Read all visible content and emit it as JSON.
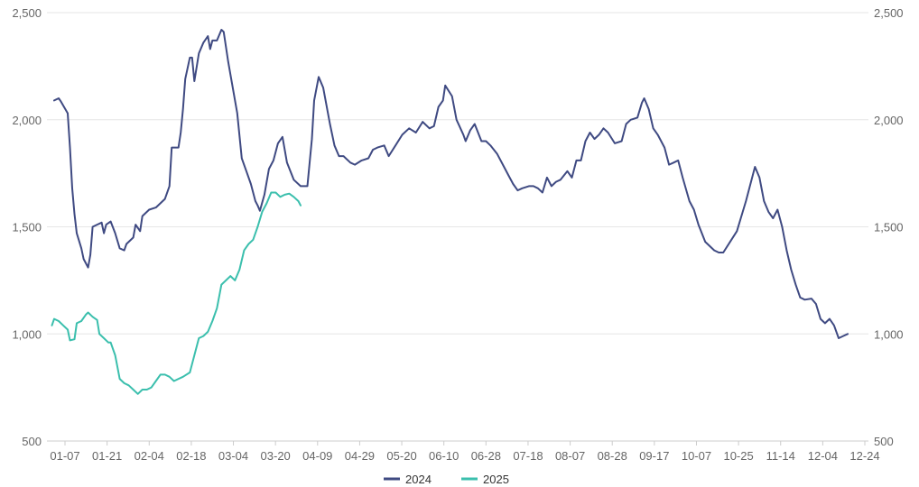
{
  "chart_data": {
    "type": "line",
    "title": "",
    "xlabel": "",
    "ylabel": "",
    "ylim": [
      500,
      2500
    ],
    "y_ticks": [
      "500",
      "1,000",
      "1,500",
      "2,000",
      "2,500"
    ],
    "y_tick_values": [
      500,
      1000,
      1500,
      2000,
      2500
    ],
    "x_tick_labels": [
      "01-07",
      "01-21",
      "02-04",
      "02-18",
      "03-04",
      "03-20",
      "04-09",
      "04-29",
      "05-20",
      "06-10",
      "06-28",
      "07-18",
      "08-07",
      "08-28",
      "09-17",
      "10-07",
      "10-25",
      "11-14",
      "12-04",
      "12-24"
    ],
    "axes": "dual y-axis with identical scale",
    "grid": "horizontal",
    "legend_position": "bottom-center",
    "series": [
      {
        "name": "2024",
        "color": "#3f4a82",
        "points": [
          [
            "01-02",
            2090
          ],
          [
            "01-04",
            2100
          ],
          [
            "01-05",
            2085
          ],
          [
            "01-08",
            2030
          ],
          [
            "01-09",
            1870
          ],
          [
            "01-10",
            1680
          ],
          [
            "01-11",
            1560
          ],
          [
            "01-12",
            1470
          ],
          [
            "01-14",
            1400
          ],
          [
            "01-15",
            1350
          ],
          [
            "01-17",
            1310
          ],
          [
            "01-18",
            1370
          ],
          [
            "01-19",
            1500
          ],
          [
            "01-21",
            1510
          ],
          [
            "01-23",
            1520
          ],
          [
            "01-24",
            1470
          ],
          [
            "01-25",
            1510
          ],
          [
            "01-27",
            1525
          ],
          [
            "01-29",
            1470
          ],
          [
            "01-31",
            1400
          ],
          [
            "02-02",
            1390
          ],
          [
            "02-03",
            1420
          ],
          [
            "02-06",
            1450
          ],
          [
            "02-07",
            1510
          ],
          [
            "02-09",
            1480
          ],
          [
            "02-10",
            1550
          ],
          [
            "02-13",
            1580
          ],
          [
            "02-16",
            1590
          ],
          [
            "02-18",
            1610
          ],
          [
            "02-20",
            1630
          ],
          [
            "02-22",
            1690
          ],
          [
            "02-23",
            1870
          ],
          [
            "02-26",
            1870
          ],
          [
            "02-27",
            1940
          ],
          [
            "02-28",
            2050
          ],
          [
            "02-29",
            2190
          ],
          [
            "03-02",
            2290
          ],
          [
            "03-03",
            2290
          ],
          [
            "03-04",
            2180
          ],
          [
            "03-06",
            2310
          ],
          [
            "03-08",
            2360
          ],
          [
            "03-10",
            2390
          ],
          [
            "03-11",
            2330
          ],
          [
            "03-12",
            2370
          ],
          [
            "03-14",
            2370
          ],
          [
            "03-16",
            2420
          ],
          [
            "03-17",
            2410
          ],
          [
            "03-19",
            2270
          ],
          [
            "03-21",
            2150
          ],
          [
            "03-23",
            2030
          ],
          [
            "03-25",
            1820
          ],
          [
            "03-27",
            1760
          ],
          [
            "03-29",
            1700
          ],
          [
            "03-31",
            1620
          ],
          [
            "04-01",
            1600
          ],
          [
            "04-02",
            1575
          ],
          [
            "04-04",
            1650
          ],
          [
            "04-06",
            1770
          ],
          [
            "04-08",
            1810
          ],
          [
            "04-10",
            1890
          ],
          [
            "04-12",
            1920
          ],
          [
            "04-14",
            1800
          ],
          [
            "04-17",
            1720
          ],
          [
            "04-20",
            1690
          ],
          [
            "04-23",
            1690
          ],
          [
            "04-25",
            1910
          ],
          [
            "04-26",
            2090
          ],
          [
            "04-28",
            2200
          ],
          [
            "04-30",
            2150
          ],
          [
            "05-03",
            1980
          ],
          [
            "05-05",
            1880
          ],
          [
            "05-07",
            1830
          ],
          [
            "05-09",
            1830
          ],
          [
            "05-12",
            1800
          ],
          [
            "05-14",
            1790
          ],
          [
            "05-17",
            1810
          ],
          [
            "05-20",
            1820
          ],
          [
            "05-22",
            1860
          ],
          [
            "05-24",
            1870
          ],
          [
            "05-27",
            1880
          ],
          [
            "05-29",
            1830
          ],
          [
            "06-01",
            1880
          ],
          [
            "06-04",
            1930
          ],
          [
            "06-07",
            1960
          ],
          [
            "06-10",
            1940
          ],
          [
            "06-13",
            1990
          ],
          [
            "06-16",
            1960
          ],
          [
            "06-18",
            1970
          ],
          [
            "06-20",
            2060
          ],
          [
            "06-22",
            2090
          ],
          [
            "06-23",
            2160
          ],
          [
            "06-26",
            2110
          ],
          [
            "06-28",
            2000
          ],
          [
            "07-01",
            1930
          ],
          [
            "07-02",
            1900
          ],
          [
            "07-04",
            1950
          ],
          [
            "07-06",
            1980
          ],
          [
            "07-09",
            1900
          ],
          [
            "07-11",
            1900
          ],
          [
            "07-13",
            1880
          ],
          [
            "07-16",
            1840
          ],
          [
            "07-19",
            1780
          ],
          [
            "07-21",
            1740
          ],
          [
            "07-23",
            1700
          ],
          [
            "07-25",
            1670
          ],
          [
            "07-27",
            1680
          ],
          [
            "07-30",
            1690
          ],
          [
            "08-01",
            1690
          ],
          [
            "08-03",
            1680
          ],
          [
            "08-05",
            1660
          ],
          [
            "08-07",
            1730
          ],
          [
            "08-09",
            1690
          ],
          [
            "08-11",
            1710
          ],
          [
            "08-13",
            1720
          ],
          [
            "08-16",
            1760
          ],
          [
            "08-18",
            1730
          ],
          [
            "08-20",
            1810
          ],
          [
            "08-22",
            1810
          ],
          [
            "08-24",
            1900
          ],
          [
            "08-26",
            1940
          ],
          [
            "08-28",
            1910
          ],
          [
            "08-30",
            1930
          ],
          [
            "09-01",
            1960
          ],
          [
            "09-03",
            1940
          ],
          [
            "09-06",
            1890
          ],
          [
            "09-09",
            1900
          ],
          [
            "09-11",
            1980
          ],
          [
            "09-13",
            2000
          ],
          [
            "09-16",
            2010
          ],
          [
            "09-18",
            2080
          ],
          [
            "09-19",
            2100
          ],
          [
            "09-21",
            2050
          ],
          [
            "09-23",
            1960
          ],
          [
            "09-25",
            1930
          ],
          [
            "09-28",
            1870
          ],
          [
            "09-30",
            1790
          ],
          [
            "10-02",
            1800
          ],
          [
            "10-04",
            1810
          ],
          [
            "10-06",
            1730
          ],
          [
            "10-09",
            1620
          ],
          [
            "10-11",
            1580
          ],
          [
            "10-13",
            1510
          ],
          [
            "10-16",
            1430
          ],
          [
            "10-18",
            1410
          ],
          [
            "10-20",
            1390
          ],
          [
            "10-22",
            1380
          ],
          [
            "10-24",
            1380
          ],
          [
            "10-27",
            1430
          ],
          [
            "10-30",
            1480
          ],
          [
            "11-01",
            1550
          ],
          [
            "11-03",
            1620
          ],
          [
            "11-05",
            1700
          ],
          [
            "11-07",
            1780
          ],
          [
            "11-09",
            1730
          ],
          [
            "11-11",
            1620
          ],
          [
            "11-13",
            1570
          ],
          [
            "11-15",
            1540
          ],
          [
            "11-17",
            1580
          ],
          [
            "11-19",
            1500
          ],
          [
            "11-21",
            1390
          ],
          [
            "11-23",
            1300
          ],
          [
            "11-25",
            1230
          ],
          [
            "11-27",
            1170
          ],
          [
            "11-29",
            1160
          ],
          [
            "12-02",
            1165
          ],
          [
            "12-04",
            1140
          ],
          [
            "12-06",
            1070
          ],
          [
            "12-08",
            1050
          ],
          [
            "12-10",
            1070
          ],
          [
            "12-12",
            1040
          ],
          [
            "12-14",
            980
          ],
          [
            "12-16",
            990
          ],
          [
            "12-18",
            1000
          ]
        ]
      },
      {
        "name": "2025",
        "color": "#3bbfad",
        "points": [
          [
            "01-01",
            1040
          ],
          [
            "01-02",
            1070
          ],
          [
            "01-04",
            1060
          ],
          [
            "01-06",
            1040
          ],
          [
            "01-08",
            1020
          ],
          [
            "01-09",
            970
          ],
          [
            "01-11",
            975
          ],
          [
            "01-12",
            1050
          ],
          [
            "01-14",
            1060
          ],
          [
            "01-16",
            1090
          ],
          [
            "01-17",
            1100
          ],
          [
            "01-19",
            1080
          ],
          [
            "01-21",
            1065
          ],
          [
            "01-22",
            1000
          ],
          [
            "01-24",
            980
          ],
          [
            "01-26",
            960
          ],
          [
            "01-27",
            960
          ],
          [
            "01-29",
            900
          ],
          [
            "01-31",
            790
          ],
          [
            "02-02",
            770
          ],
          [
            "02-04",
            760
          ],
          [
            "02-06",
            740
          ],
          [
            "02-08",
            720
          ],
          [
            "02-10",
            740
          ],
          [
            "02-12",
            740
          ],
          [
            "02-14",
            750
          ],
          [
            "02-16",
            780
          ],
          [
            "02-18",
            810
          ],
          [
            "02-20",
            810
          ],
          [
            "02-22",
            800
          ],
          [
            "02-24",
            780
          ],
          [
            "02-26",
            790
          ],
          [
            "02-28",
            800
          ],
          [
            "03-02",
            820
          ],
          [
            "03-04",
            900
          ],
          [
            "03-06",
            980
          ],
          [
            "03-08",
            990
          ],
          [
            "03-10",
            1010
          ],
          [
            "03-12",
            1060
          ],
          [
            "03-14",
            1120
          ],
          [
            "03-16",
            1230
          ],
          [
            "03-18",
            1250
          ],
          [
            "03-20",
            1270
          ],
          [
            "03-22",
            1250
          ],
          [
            "03-24",
            1300
          ],
          [
            "03-26",
            1390
          ],
          [
            "03-28",
            1420
          ],
          [
            "03-30",
            1440
          ],
          [
            "04-01",
            1500
          ],
          [
            "04-03",
            1570
          ],
          [
            "04-05",
            1610
          ],
          [
            "04-07",
            1660
          ],
          [
            "04-09",
            1660
          ],
          [
            "04-11",
            1640
          ],
          [
            "04-13",
            1650
          ],
          [
            "04-15",
            1655
          ],
          [
            "04-17",
            1640
          ],
          [
            "04-19",
            1620
          ],
          [
            "04-20",
            1600
          ]
        ]
      }
    ]
  }
}
